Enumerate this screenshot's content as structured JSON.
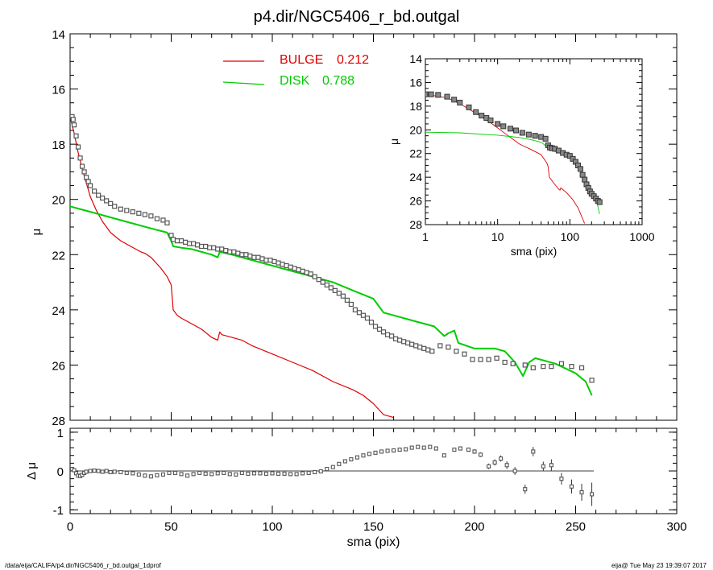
{
  "title": "p4.dir/NGC5406_r_bd.outgal",
  "footer": {
    "left": "/data/eija/CALIFA/p4.dir/NGC5406_r_bd.outgal_1dprof",
    "right": "eija@  Tue May 23 19:39:07 2017"
  },
  "colors": {
    "bulge": "#e00000",
    "disk": "#00cc00",
    "data": "#555555",
    "axis": "#000000"
  },
  "chart_data": [
    {
      "type": "line",
      "panel": "main",
      "xlabel": "sma (pix)",
      "ylabel": "μ",
      "xlim": [
        0,
        300
      ],
      "ylim": [
        28,
        14
      ],
      "xticks": [
        "0",
        "50",
        "100",
        "150",
        "200",
        "250",
        "300"
      ],
      "yticks": [
        "14",
        "16",
        "18",
        "20",
        "22",
        "24",
        "26",
        "28"
      ],
      "legend": [
        {
          "name": "BULGE",
          "value": "0.212",
          "color": "#e00000"
        },
        {
          "name": "DISK",
          "value": "0.788",
          "color": "#00cc00"
        }
      ],
      "series": [
        {
          "name": "BULGE",
          "color": "#e00000",
          "x": [
            0,
            2,
            4,
            6,
            8,
            10,
            13,
            16,
            20,
            25,
            30,
            35,
            37,
            40,
            45,
            48,
            50,
            51,
            53,
            55,
            60,
            65,
            70,
            73,
            74,
            75,
            80,
            85,
            90,
            100,
            110,
            120,
            130,
            140,
            145,
            150,
            155,
            160
          ],
          "y": [
            17.0,
            17.6,
            18.3,
            18.9,
            19.4,
            19.9,
            20.4,
            20.8,
            21.2,
            21.5,
            21.7,
            21.9,
            21.95,
            22.1,
            22.5,
            22.8,
            23.1,
            24.0,
            24.2,
            24.3,
            24.5,
            24.7,
            25.0,
            25.1,
            24.8,
            24.9,
            25.0,
            25.1,
            25.3,
            25.6,
            25.9,
            26.2,
            26.6,
            26.9,
            27.1,
            27.4,
            27.8,
            27.9
          ]
        },
        {
          "name": "DISK",
          "color": "#00cc00",
          "x": [
            0,
            10,
            20,
            30,
            40,
            48,
            50,
            51,
            55,
            60,
            70,
            73,
            74,
            80,
            90,
            100,
            110,
            120,
            130,
            140,
            150,
            153,
            155,
            160,
            170,
            180,
            185,
            187,
            190,
            192,
            200,
            210,
            215,
            220,
            224,
            227,
            230,
            240,
            250,
            255,
            258
          ],
          "y": [
            20.25,
            20.45,
            20.65,
            20.85,
            21.05,
            21.2,
            21.5,
            21.7,
            21.75,
            21.8,
            22.0,
            22.1,
            21.9,
            22.0,
            22.2,
            22.4,
            22.6,
            22.8,
            23.0,
            23.3,
            23.6,
            23.9,
            24.1,
            24.2,
            24.4,
            24.6,
            24.95,
            24.85,
            24.75,
            25.2,
            25.4,
            25.4,
            25.5,
            25.9,
            26.4,
            25.9,
            25.75,
            25.95,
            26.3,
            26.6,
            27.1
          ]
        },
        {
          "name": "data",
          "type": "scatter",
          "color": "#555555",
          "x": [
            1,
            1.5,
            2,
            3,
            4,
            5,
            6,
            7,
            8,
            9,
            10,
            12,
            14,
            16,
            18,
            20,
            22,
            25,
            28,
            31,
            34,
            37,
            40,
            43,
            46,
            48,
            50,
            51,
            53,
            55,
            57,
            59,
            61,
            63,
            65,
            67,
            69,
            71,
            73,
            75,
            77,
            79,
            81,
            83,
            85,
            87,
            89,
            91,
            93,
            95,
            97,
            99,
            101,
            103,
            105,
            107,
            109,
            111,
            113,
            115,
            117,
            119,
            121,
            123,
            125,
            127,
            129,
            131,
            133,
            135,
            137,
            139,
            141,
            143,
            145,
            147,
            149,
            151,
            153,
            155,
            157,
            159,
            161,
            163,
            165,
            167,
            169,
            171,
            173,
            175,
            177,
            179,
            183,
            187,
            191,
            195,
            199,
            203,
            207,
            211,
            215,
            219,
            225,
            229,
            234,
            238,
            243,
            248,
            253,
            258
          ],
          "y": [
            17.0,
            17.1,
            17.3,
            17.7,
            18.1,
            18.5,
            18.8,
            19.0,
            19.2,
            19.35,
            19.5,
            19.7,
            19.85,
            19.95,
            20.05,
            20.15,
            20.25,
            20.35,
            20.4,
            20.45,
            20.5,
            20.55,
            20.6,
            20.7,
            20.75,
            20.85,
            21.3,
            21.45,
            21.5,
            21.5,
            21.55,
            21.6,
            21.6,
            21.65,
            21.7,
            21.7,
            21.75,
            21.75,
            21.8,
            21.8,
            21.85,
            21.9,
            21.9,
            21.95,
            22.0,
            22.0,
            22.05,
            22.1,
            22.1,
            22.15,
            22.2,
            22.2,
            22.25,
            22.3,
            22.35,
            22.4,
            22.45,
            22.5,
            22.55,
            22.6,
            22.65,
            22.7,
            22.8,
            22.9,
            23.0,
            23.1,
            23.2,
            23.3,
            23.4,
            23.5,
            23.65,
            23.8,
            24.0,
            24.1,
            24.2,
            24.3,
            24.45,
            24.6,
            24.7,
            24.8,
            24.9,
            24.95,
            25.05,
            25.1,
            25.15,
            25.2,
            25.25,
            25.3,
            25.35,
            25.4,
            25.45,
            25.5,
            25.3,
            25.35,
            25.5,
            25.6,
            25.8,
            25.8,
            25.8,
            25.75,
            25.9,
            25.95,
            26.0,
            26.1,
            26.05,
            26.05,
            25.95,
            26.05,
            26.1,
            26.55
          ]
        }
      ]
    },
    {
      "type": "scatter",
      "panel": "residual",
      "xlabel": "sma (pix)",
      "ylabel": "Δ μ",
      "xlim": [
        0,
        300
      ],
      "ylim": [
        -1.1,
        1.1
      ],
      "yticks": [
        "-1",
        "0",
        "1"
      ],
      "series": [
        {
          "name": "residual",
          "color": "#555555",
          "x": [
            1,
            2,
            3,
            4,
            5,
            6,
            7,
            8,
            10,
            12,
            14,
            16,
            18,
            20,
            22,
            25,
            28,
            31,
            34,
            37,
            40,
            43,
            46,
            49,
            52,
            55,
            58,
            61,
            64,
            67,
            70,
            73,
            76,
            79,
            82,
            85,
            88,
            91,
            94,
            97,
            100,
            103,
            106,
            109,
            112,
            115,
            118,
            121,
            124,
            127,
            130,
            133,
            136,
            139,
            142,
            145,
            148,
            151,
            154,
            157,
            160,
            163,
            166,
            169,
            172,
            175,
            178,
            181,
            185,
            190,
            193,
            197,
            200,
            203,
            207,
            210,
            213,
            216,
            220,
            225,
            229,
            234,
            238,
            243,
            248,
            253,
            258
          ],
          "y": [
            0.05,
            0.02,
            -0.06,
            -0.12,
            -0.13,
            -0.1,
            -0.05,
            -0.02,
            0.0,
            0.01,
            0.0,
            -0.02,
            0.0,
            -0.03,
            -0.02,
            -0.03,
            -0.05,
            -0.06,
            -0.09,
            -0.12,
            -0.14,
            -0.11,
            -0.09,
            -0.05,
            -0.05,
            -0.08,
            -0.12,
            -0.08,
            -0.05,
            -0.07,
            -0.08,
            -0.06,
            -0.05,
            -0.08,
            -0.09,
            -0.05,
            -0.07,
            -0.06,
            -0.06,
            -0.07,
            -0.06,
            -0.07,
            -0.07,
            -0.08,
            -0.08,
            -0.06,
            -0.05,
            -0.03,
            -0.01,
            0.05,
            0.1,
            0.18,
            0.25,
            0.3,
            0.35,
            0.4,
            0.44,
            0.47,
            0.5,
            0.52,
            0.53,
            0.55,
            0.56,
            0.6,
            0.62,
            0.6,
            0.62,
            0.58,
            0.4,
            0.55,
            0.58,
            0.55,
            0.5,
            0.42,
            0.12,
            0.22,
            0.32,
            0.15,
            0.0,
            -0.47,
            0.5,
            0.12,
            0.15,
            -0.2,
            -0.4,
            -0.55,
            -0.6
          ],
          "err": [
            0.01,
            0.01,
            0.01,
            0.01,
            0.01,
            0.01,
            0.01,
            0.01,
            0.01,
            0.01,
            0.01,
            0.01,
            0.01,
            0.01,
            0.01,
            0.01,
            0.01,
            0.01,
            0.01,
            0.01,
            0.01,
            0.01,
            0.01,
            0.01,
            0.01,
            0.01,
            0.01,
            0.01,
            0.01,
            0.01,
            0.01,
            0.01,
            0.01,
            0.01,
            0.01,
            0.01,
            0.01,
            0.01,
            0.01,
            0.01,
            0.01,
            0.01,
            0.01,
            0.01,
            0.01,
            0.01,
            0.01,
            0.01,
            0.01,
            0.01,
            0.01,
            0.01,
            0.01,
            0.01,
            0.01,
            0.01,
            0.01,
            0.01,
            0.01,
            0.01,
            0.01,
            0.01,
            0.01,
            0.01,
            0.01,
            0.02,
            0.02,
            0.02,
            0.03,
            0.05,
            0.05,
            0.05,
            0.06,
            0.06,
            0.07,
            0.08,
            0.08,
            0.1,
            0.1,
            0.12,
            0.12,
            0.12,
            0.15,
            0.15,
            0.18,
            0.22,
            0.3
          ]
        }
      ]
    },
    {
      "type": "line",
      "panel": "inset",
      "xlabel": "sma (pix)",
      "ylabel": "μ",
      "xscale": "log",
      "xlim": [
        1,
        1000
      ],
      "ylim": [
        28,
        14
      ],
      "xticks": [
        "1",
        "10",
        "100",
        "1000"
      ],
      "yticks": [
        "14",
        "16",
        "18",
        "20",
        "22",
        "24",
        "26",
        "28"
      ],
      "series": [
        {
          "name": "BULGE",
          "color": "#e00000",
          "x": [
            1,
            2,
            3,
            5,
            8,
            12,
            20,
            30,
            40,
            48,
            50,
            52,
            60,
            70,
            73,
            75,
            90,
            110,
            130,
            160
          ],
          "y": [
            17.0,
            17.3,
            17.8,
            18.6,
            19.4,
            20.2,
            21.2,
            21.7,
            22.1,
            22.8,
            23.1,
            24.0,
            24.5,
            25.0,
            25.1,
            24.9,
            25.3,
            25.9,
            26.6,
            27.9
          ]
        },
        {
          "name": "DISK",
          "color": "#00cc00",
          "x": [
            1,
            3,
            10,
            20,
            30,
            40,
            50,
            60,
            80,
            100,
            130,
            160,
            200,
            230,
            258
          ],
          "y": [
            20.2,
            20.25,
            20.45,
            20.65,
            20.85,
            21.05,
            21.5,
            21.8,
            22.0,
            22.4,
            23.0,
            24.2,
            25.4,
            25.75,
            27.1
          ]
        },
        {
          "name": "data",
          "type": "scatter",
          "color": "#555555",
          "x": [
            1,
            1.2,
            1.5,
            2,
            2.5,
            3,
            4,
            5,
            6,
            7,
            8,
            10,
            12,
            15,
            18,
            22,
            27,
            33,
            40,
            46,
            50,
            53,
            57,
            62,
            70,
            80,
            90,
            100,
            110,
            120,
            130,
            140,
            150,
            160,
            170,
            180,
            190,
            200,
            215,
            230,
            245,
            258
          ],
          "y": [
            17.0,
            17.0,
            17.05,
            17.2,
            17.45,
            17.7,
            18.1,
            18.5,
            18.8,
            19.0,
            19.2,
            19.5,
            19.7,
            19.9,
            20.05,
            20.25,
            20.4,
            20.5,
            20.6,
            20.75,
            21.3,
            21.5,
            21.55,
            21.6,
            21.75,
            21.95,
            22.1,
            22.2,
            22.45,
            22.7,
            23.0,
            23.3,
            23.8,
            24.2,
            24.6,
            24.9,
            25.2,
            25.4,
            25.6,
            25.8,
            26.0,
            26.1
          ]
        }
      ]
    }
  ]
}
